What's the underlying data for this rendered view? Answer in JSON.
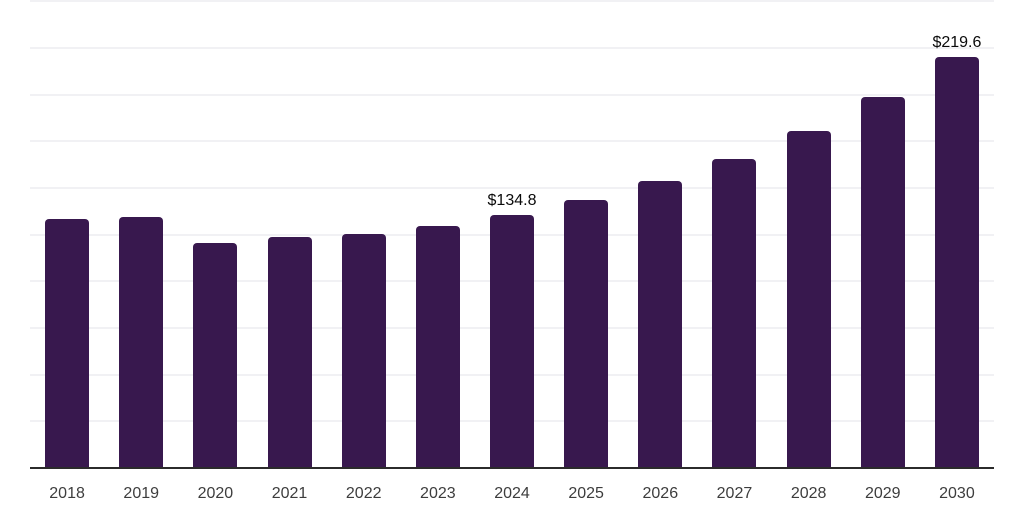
{
  "chart_data": {
    "type": "bar",
    "title": "",
    "xlabel": "",
    "ylabel": "",
    "categories": [
      "2018",
      "2019",
      "2020",
      "2021",
      "2022",
      "2023",
      "2024",
      "2025",
      "2026",
      "2027",
      "2028",
      "2029",
      "2030"
    ],
    "values": [
      133,
      134,
      120,
      123,
      125,
      129,
      134.8,
      143,
      153,
      165,
      180,
      198,
      219.6
    ],
    "value_labels": [
      "",
      "",
      "",
      "",
      "",
      "",
      "$134.8",
      "",
      "",
      "",
      "",
      "",
      "$219.6"
    ],
    "ylim": [
      0,
      250
    ],
    "grid_step": 25,
    "grid": true,
    "legend": false
  },
  "style": {
    "background": "#ffffff",
    "bar_color": "#38184e",
    "gridline_color": "#f1f1f4",
    "axis_line_color": "#2b2b2b",
    "tick_label_color": "#3d3d3d",
    "value_label_color": "#0a0a0a"
  }
}
